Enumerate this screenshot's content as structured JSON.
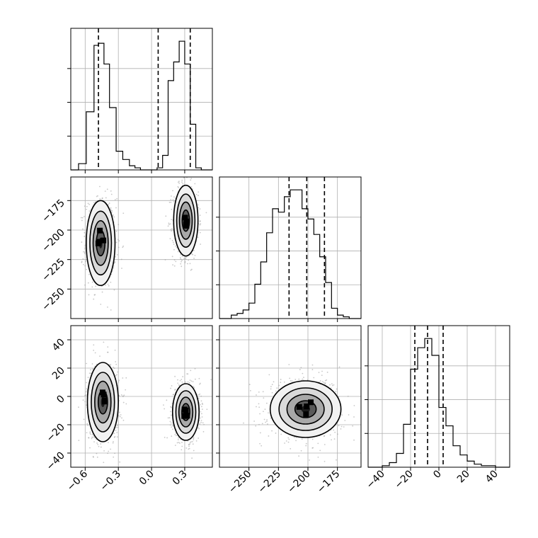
{
  "chart_data": {
    "type": "corner",
    "title": "",
    "parameters": [
      {
        "index": 0,
        "range": [
          -0.73,
          0.55
        ],
        "ticks": [
          -0.6,
          -0.3,
          0.0,
          0.3
        ],
        "tick_labels": [
          "−0.6",
          "−0.3",
          "0.0",
          "0.3"
        ],
        "quantiles": [
          -0.48,
          0.06,
          0.35
        ]
      },
      {
        "index": 1,
        "range": [
          -275,
          -155
        ],
        "ticks": [
          -250,
          -225,
          -200,
          -175
        ],
        "tick_labels": [
          "−250",
          "−225",
          "−200",
          "−175"
        ],
        "quantiles": [
          -216,
          -201,
          -186
        ]
      },
      {
        "index": 2,
        "range": [
          -50,
          50
        ],
        "ticks": [
          -40,
          -20,
          0,
          20,
          40
        ],
        "tick_labels": [
          "−40",
          "−20",
          "0",
          "20",
          "40"
        ],
        "quantiles": [
          -17,
          -8,
          3
        ]
      }
    ],
    "histograms": [
      {
        "param": 0,
        "edges": [
          -0.73,
          -0.66,
          -0.59,
          -0.52,
          -0.48,
          -0.43,
          -0.38,
          -0.32,
          -0.26,
          -0.2,
          -0.15,
          -0.1,
          -0.05,
          0.0,
          0.05,
          0.1,
          0.15,
          0.2,
          0.25,
          0.3,
          0.35,
          0.4,
          0.45,
          0.5,
          0.55
        ],
        "counts": [
          0,
          3,
          28,
          60,
          61,
          51,
          30,
          9,
          5,
          2,
          1,
          0,
          0,
          0,
          1,
          7,
          43,
          52,
          62,
          51,
          22,
          1,
          0,
          0
        ]
      },
      {
        "param": 1,
        "edges": [
          -275,
          -270,
          -265,
          -260,
          -255,
          -250,
          -245,
          -240,
          -235,
          -230,
          -225,
          -220,
          -215,
          -210,
          -205,
          -200,
          -195,
          -190,
          -185,
          -180,
          -175,
          -170,
          -165,
          -160,
          -155
        ],
        "counts": [
          0,
          0,
          2,
          3,
          5,
          9,
          20,
          33,
          50,
          64,
          62,
          71,
          75,
          75,
          64,
          58,
          49,
          36,
          21,
          6,
          2,
          1,
          0,
          0
        ]
      },
      {
        "param": 2,
        "edges": [
          -50,
          -45,
          -40,
          -35,
          -30,
          -25,
          -20,
          -15,
          -10,
          -5,
          0,
          5,
          10,
          15,
          20,
          25,
          30,
          35,
          40,
          45,
          50
        ],
        "counts": [
          0,
          0,
          1,
          3,
          9,
          28,
          64,
          78,
          84,
          73,
          39,
          27,
          14,
          8,
          4,
          2,
          1,
          1,
          0,
          0
        ]
      }
    ],
    "scatter_panels": [
      {
        "x_param": 0,
        "y_param": 1,
        "clusters": [
          {
            "center": [
              -0.46,
              -211
            ],
            "sd": [
              0.065,
              18
            ]
          },
          {
            "center": [
              0.31,
              -192
            ],
            "sd": [
              0.055,
              15
            ]
          }
        ]
      },
      {
        "x_param": 0,
        "y_param": 2,
        "clusters": [
          {
            "center": [
              -0.44,
              -4
            ],
            "sd": [
              0.07,
              14
            ]
          },
          {
            "center": [
              0.31,
              -11
            ],
            "sd": [
              0.06,
              10
            ]
          }
        ]
      },
      {
        "x_param": 1,
        "y_param": 2,
        "clusters": [
          {
            "center": [
              -202,
              -9
            ],
            "sd": [
              15,
              10
            ]
          }
        ]
      }
    ],
    "grid": true,
    "legend": "none"
  }
}
